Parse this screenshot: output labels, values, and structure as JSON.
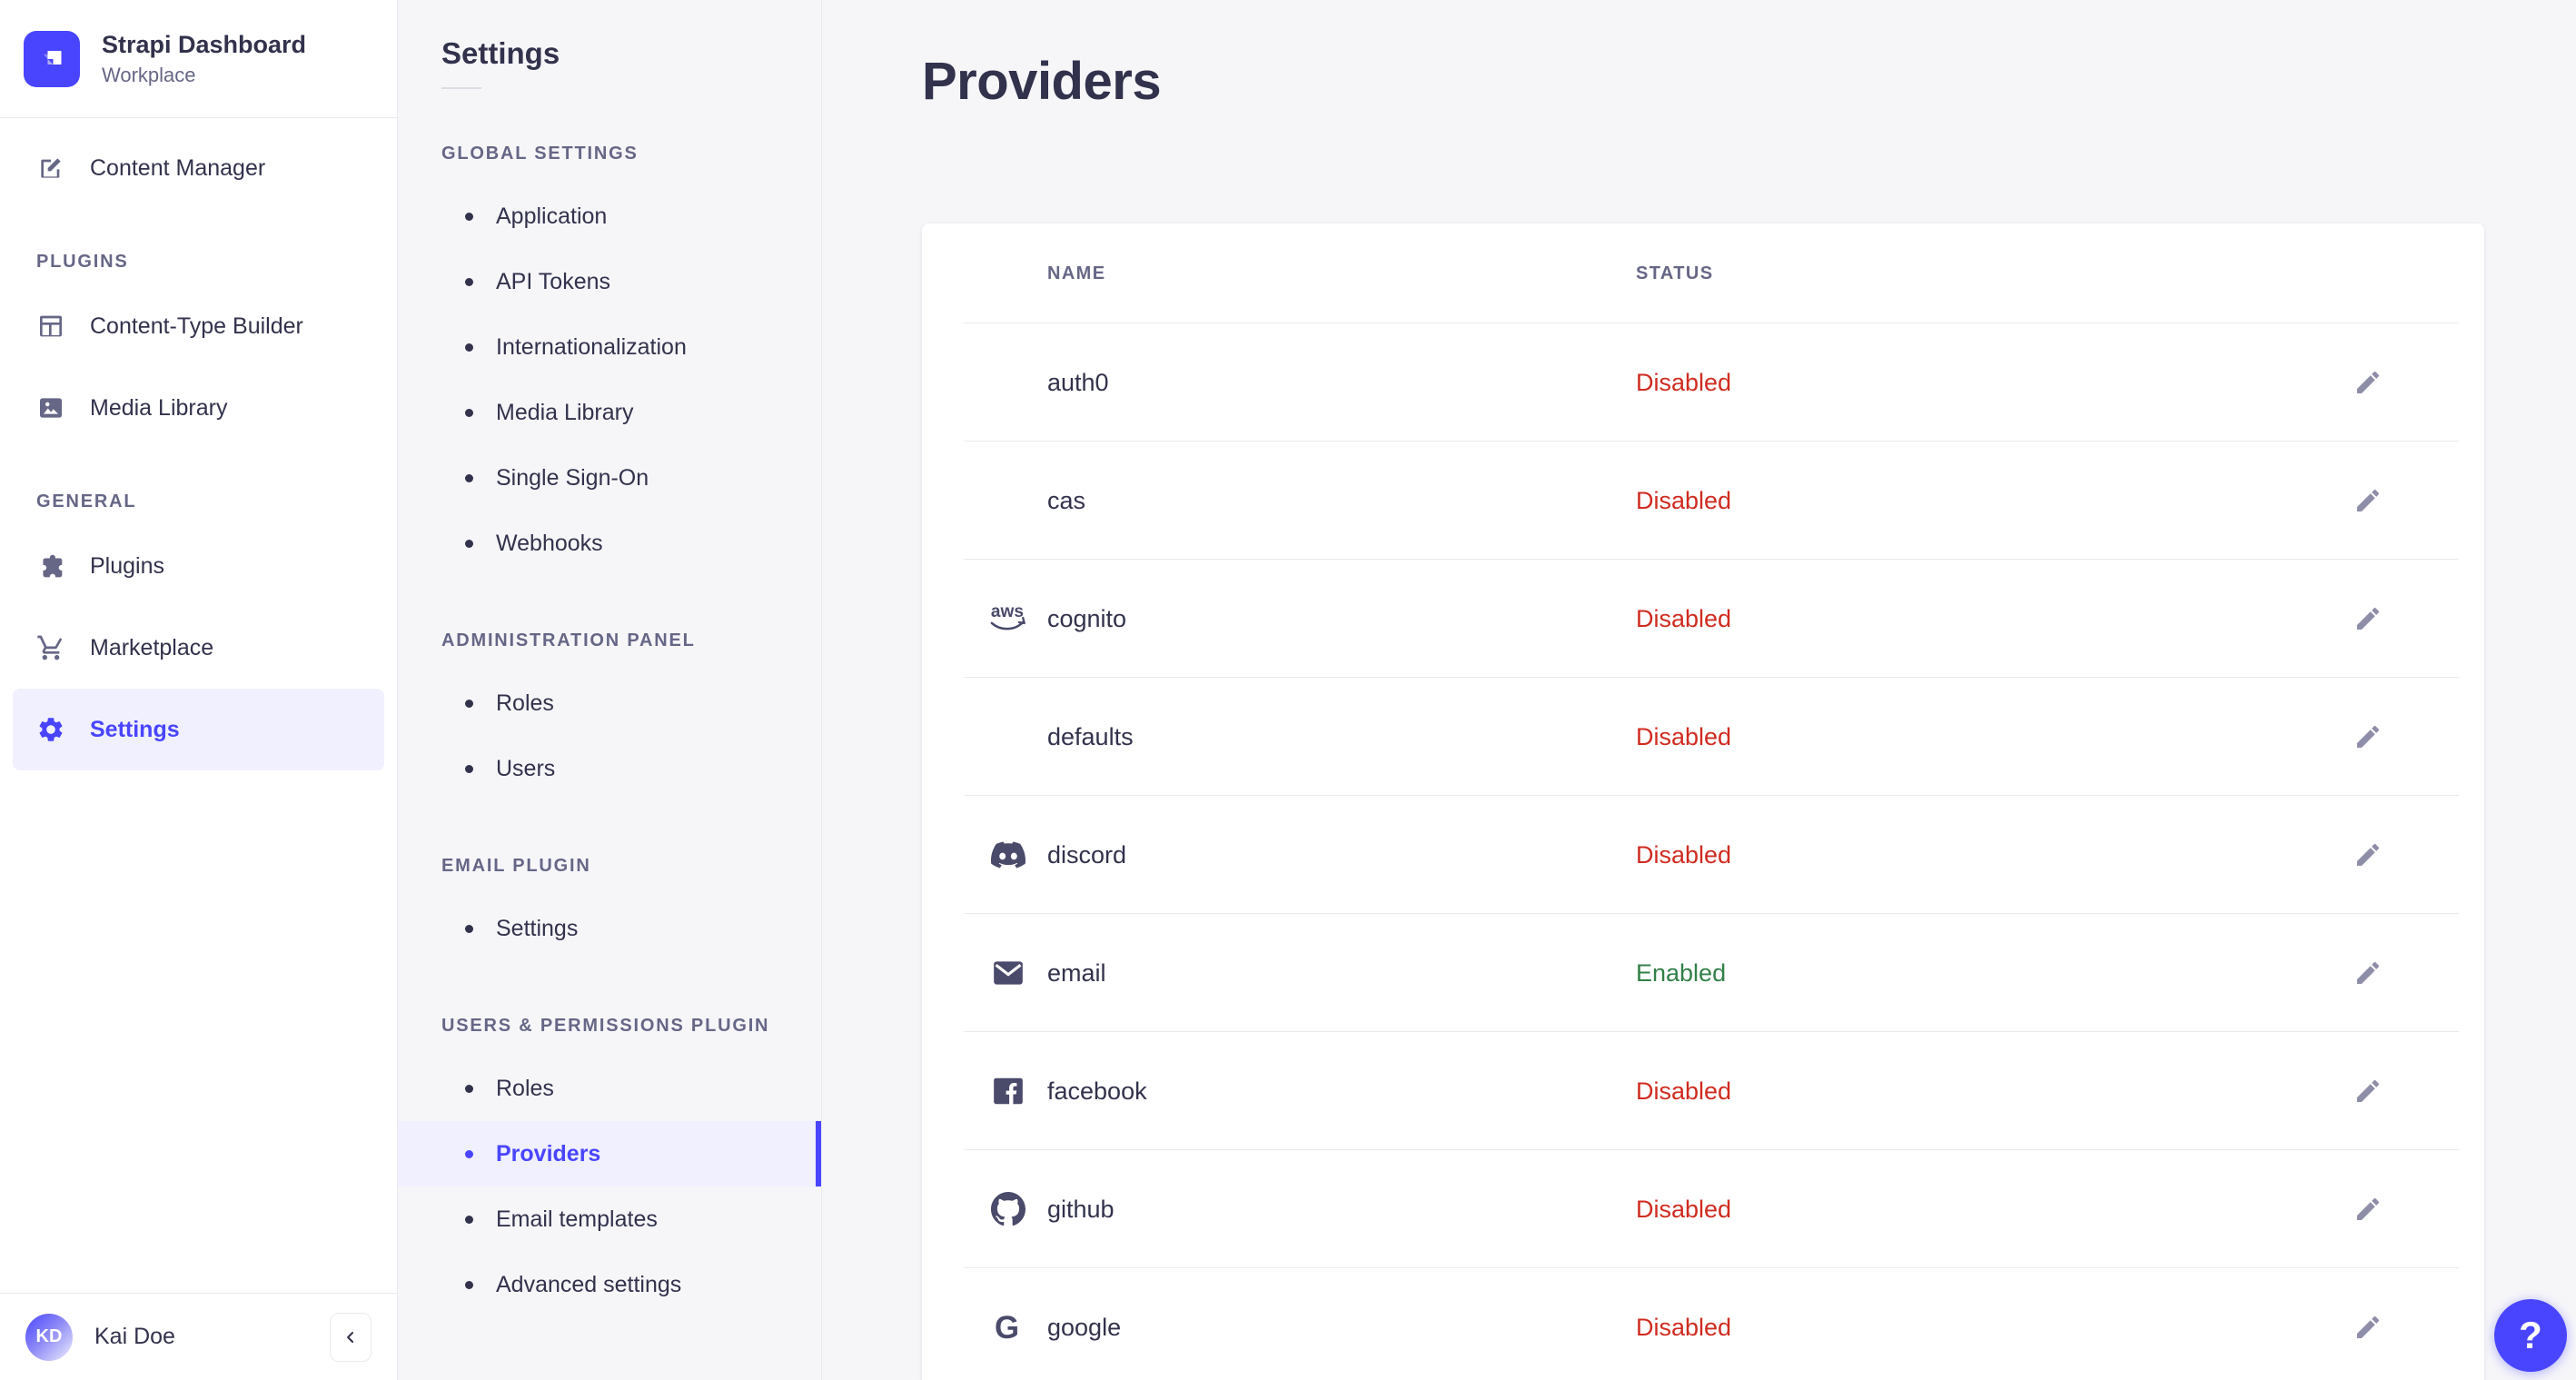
{
  "colors": {
    "primary": "#4945ff",
    "primary_bg": "#f0f0ff",
    "danger": "#d02b20",
    "success": "#328048",
    "text": "#32324d",
    "muted": "#666687",
    "border": "#eaeaef",
    "background": "#f6f6f9"
  },
  "brand": {
    "title": "Strapi Dashboard",
    "subtitle": "Workplace",
    "logo_icon": "strapi-logo"
  },
  "sidebar": {
    "top_items": [
      {
        "label": "Content Manager",
        "icon": "content-manager-icon",
        "active": false
      }
    ],
    "sections": [
      {
        "label": "PLUGINS",
        "items": [
          {
            "label": "Content-Type Builder",
            "icon": "content-type-builder-icon",
            "active": false
          },
          {
            "label": "Media Library",
            "icon": "media-library-icon",
            "active": false
          }
        ]
      },
      {
        "label": "GENERAL",
        "items": [
          {
            "label": "Plugins",
            "icon": "plugins-icon",
            "active": false
          },
          {
            "label": "Marketplace",
            "icon": "marketplace-icon",
            "active": false
          },
          {
            "label": "Settings",
            "icon": "settings-gear-icon",
            "active": true
          }
        ]
      }
    ],
    "user": {
      "name": "Kai Doe",
      "initials": "KD"
    },
    "collapse_icon": "chevron-left-icon"
  },
  "subnav": {
    "title": "Settings",
    "sections": [
      {
        "label": "GLOBAL SETTINGS",
        "items": [
          {
            "label": "Application",
            "active": false
          },
          {
            "label": "API Tokens",
            "active": false
          },
          {
            "label": "Internationalization",
            "active": false
          },
          {
            "label": "Media Library",
            "active": false
          },
          {
            "label": "Single Sign-On",
            "active": false
          },
          {
            "label": "Webhooks",
            "active": false
          }
        ]
      },
      {
        "label": "ADMINISTRATION PANEL",
        "items": [
          {
            "label": "Roles",
            "active": false
          },
          {
            "label": "Users",
            "active": false
          }
        ]
      },
      {
        "label": "EMAIL PLUGIN",
        "items": [
          {
            "label": "Settings",
            "active": false
          }
        ]
      },
      {
        "label": "USERS & PERMISSIONS PLUGIN",
        "items": [
          {
            "label": "Roles",
            "active": false
          },
          {
            "label": "Providers",
            "active": true
          },
          {
            "label": "Email templates",
            "active": false
          },
          {
            "label": "Advanced settings",
            "active": false
          }
        ]
      }
    ]
  },
  "main": {
    "title": "Providers",
    "table": {
      "headers": [
        {
          "label": "NAME"
        },
        {
          "label": "STATUS"
        }
      ],
      "edit_icon": "edit-pencil-icon",
      "rows": [
        {
          "name": "auth0",
          "icon": null,
          "status": "Disabled",
          "status_type": "danger"
        },
        {
          "name": "cas",
          "icon": null,
          "status": "Disabled",
          "status_type": "danger"
        },
        {
          "name": "cognito",
          "icon": "aws-icon",
          "status": "Disabled",
          "status_type": "danger"
        },
        {
          "name": "defaults",
          "icon": null,
          "status": "Disabled",
          "status_type": "danger"
        },
        {
          "name": "discord",
          "icon": "discord-icon",
          "status": "Disabled",
          "status_type": "danger"
        },
        {
          "name": "email",
          "icon": "email-icon",
          "status": "Enabled",
          "status_type": "success"
        },
        {
          "name": "facebook",
          "icon": "facebook-icon",
          "status": "Disabled",
          "status_type": "danger"
        },
        {
          "name": "github",
          "icon": "github-icon",
          "status": "Disabled",
          "status_type": "danger"
        },
        {
          "name": "google",
          "icon": "google-icon",
          "status": "Disabled",
          "status_type": "danger"
        }
      ]
    }
  },
  "help": {
    "label": "?"
  }
}
